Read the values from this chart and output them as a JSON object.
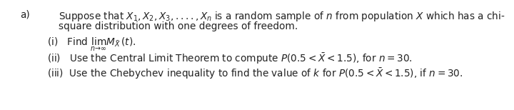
{
  "bg_color": "#ffffff",
  "text_color": "#222222",
  "label_a": "a)",
  "line1": "Suppose that $X_1, X_2, X_3,....,X_n$ is a random sample of $n$ from population $X$ which has a chi-",
  "line2": "square distribution with one degrees of freedom.",
  "line3": "(i)   Find $\\lim_{n\\to\\infty} M_{\\bar{X}}(t)$.",
  "line4": "(ii)   Use the Central Limit Theorem to compute $P(0.5 < \\bar{X} < 1.5)$, for $n = 30$.",
  "line5": "(iii)  Use the Chebychev inequality to find the value of $k$ for $P(0.5 < \\bar{X} < 1.5)$, if $n = 30$.",
  "font_size": 9.8,
  "fig_width": 7.2,
  "fig_height": 1.54,
  "dpi": 100
}
